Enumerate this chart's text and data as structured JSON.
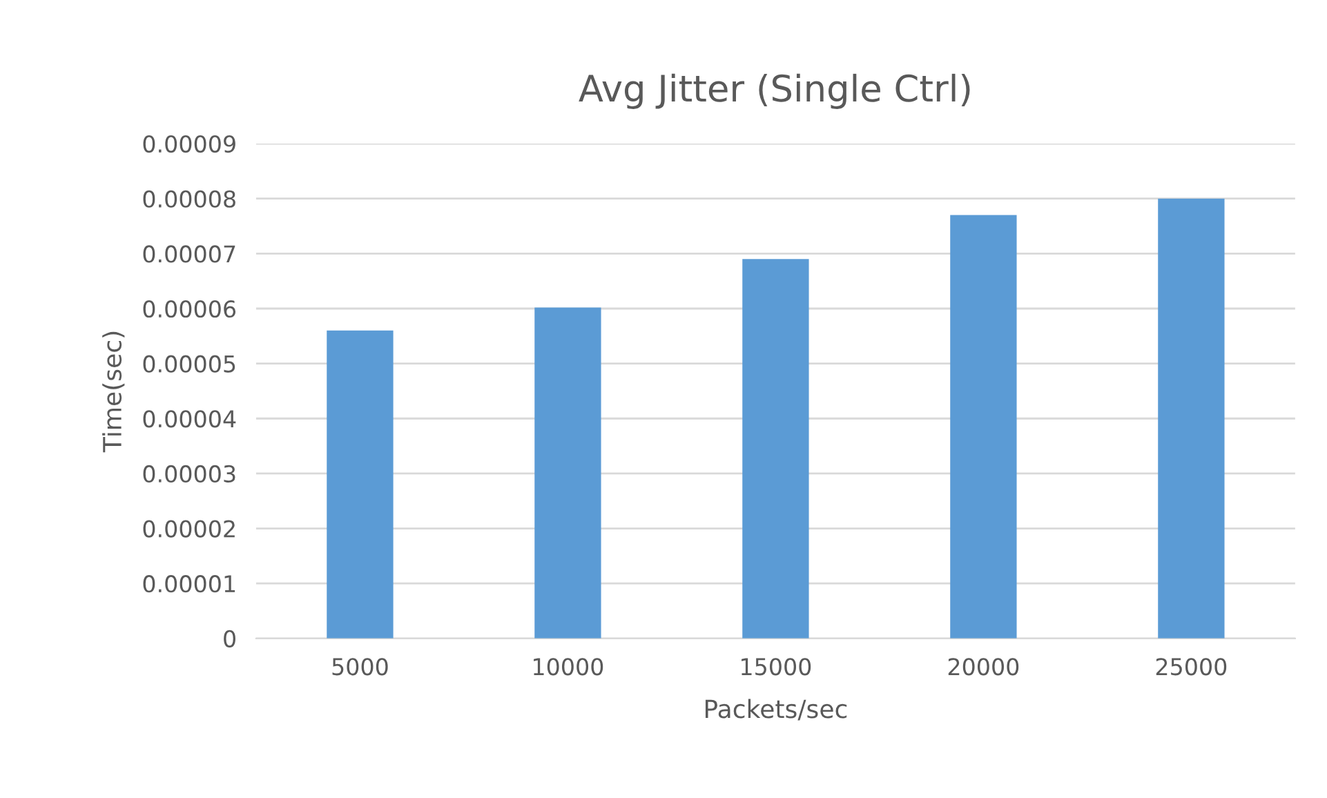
{
  "chart_data": {
    "type": "bar",
    "title": "Avg Jitter (Single Ctrl)",
    "xlabel": "Packets/sec",
    "ylabel": "Time(sec)",
    "categories": [
      "5000",
      "10000",
      "15000",
      "20000",
      "25000"
    ],
    "values": [
      5.6e-05,
      6.02e-05,
      6.9e-05,
      7.7e-05,
      8e-05
    ],
    "color": "#5b9bd5",
    "ylim": [
      0,
      9e-05
    ],
    "yticks": [
      0,
      {
        "value": 1e-05,
        "label": "0.00001"
      },
      {
        "value": 2e-05,
        "label": "0.00002"
      },
      {
        "value": 3e-05,
        "label": "0.00003"
      },
      {
        "value": 4e-05,
        "label": "0.00004"
      },
      {
        "value": 5e-05,
        "label": "0.00005"
      },
      {
        "value": 6e-05,
        "label": "0.00006"
      },
      {
        "value": 7e-05,
        "label": "0.00007"
      },
      {
        "value": 8e-05,
        "label": "0.00008"
      },
      {
        "value": 9e-05,
        "label": "0.00009"
      }
    ],
    "grid": "y",
    "legend": false
  }
}
